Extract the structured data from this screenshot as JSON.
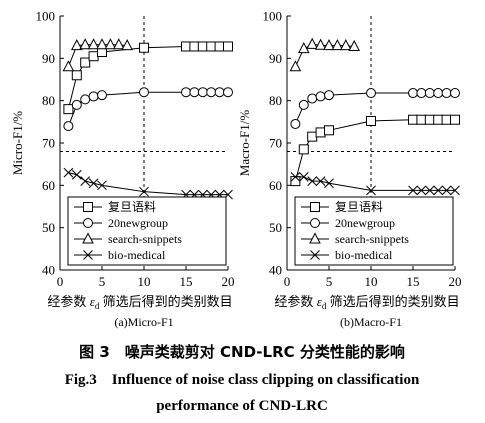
{
  "chart_data": [
    {
      "type": "line",
      "title": "(a)Micro-F1",
      "xlabel": "经参数 ε_d 筛选后得到的类别数目",
      "ylabel": "Micro-F1/%",
      "xlim": [
        0,
        20
      ],
      "ylim": [
        40,
        100
      ],
      "xticks": [
        0,
        5,
        10,
        15,
        20
      ],
      "yticks": [
        40,
        50,
        60,
        70,
        80,
        90,
        100
      ],
      "grid": false,
      "legend_position": "lower-left",
      "reference_lines": {
        "vertical_x": 10,
        "horizontal_y": 68
      },
      "series": [
        {
          "name": "复旦语料",
          "marker": "square",
          "x": [
            1,
            2,
            3,
            4,
            5,
            10,
            15,
            16,
            17,
            18,
            19,
            20
          ],
          "y": [
            78,
            86,
            89,
            90.5,
            91.5,
            92.5,
            92.8,
            92.8,
            92.8,
            92.8,
            92.8,
            92.8
          ]
        },
        {
          "name": "20newgroup",
          "marker": "circle",
          "x": [
            1,
            2,
            3,
            4,
            5,
            10,
            15,
            16,
            17,
            18,
            19,
            20
          ],
          "y": [
            74,
            79,
            80.3,
            81,
            81.3,
            82,
            82,
            82,
            82,
            82,
            82,
            82
          ]
        },
        {
          "name": "search-snippets",
          "marker": "triangle",
          "x": [
            1,
            2,
            3,
            4,
            5,
            6,
            7,
            8
          ],
          "y": [
            88,
            93,
            93.2,
            93.2,
            93.2,
            93.2,
            93.2,
            93
          ]
        },
        {
          "name": "bio-medical",
          "marker": "x",
          "x": [
            1,
            2,
            3,
            4,
            5,
            10,
            15,
            16,
            17,
            18,
            19,
            20
          ],
          "y": [
            63,
            62.5,
            61,
            60.5,
            60,
            58.5,
            57.8,
            57.8,
            57.8,
            57.8,
            57.8,
            57.8
          ]
        }
      ]
    },
    {
      "type": "line",
      "title": "(b)Macro-F1",
      "xlabel": "经参数 ε_d 筛选后得到的类别数目",
      "ylabel": "Macro-F1/%",
      "xlim": [
        0,
        20
      ],
      "ylim": [
        40,
        100
      ],
      "xticks": [
        0,
        5,
        10,
        15,
        20
      ],
      "yticks": [
        40,
        50,
        60,
        70,
        80,
        90,
        100
      ],
      "grid": false,
      "legend_position": "lower-left",
      "reference_lines": {
        "vertical_x": 10,
        "horizontal_y": 68
      },
      "series": [
        {
          "name": "复旦语料",
          "marker": "square",
          "x": [
            1,
            2,
            3,
            4,
            5,
            10,
            15,
            16,
            17,
            18,
            19,
            20
          ],
          "y": [
            61,
            68.5,
            71.5,
            72.5,
            73,
            75.2,
            75.5,
            75.5,
            75.5,
            75.5,
            75.5,
            75.5
          ]
        },
        {
          "name": "20newgroup",
          "marker": "circle",
          "x": [
            1,
            2,
            3,
            4,
            5,
            10,
            15,
            16,
            17,
            18,
            19,
            20
          ],
          "y": [
            74.5,
            79,
            80.5,
            81,
            81.3,
            81.8,
            81.8,
            81.8,
            81.8,
            81.8,
            81.8,
            81.8
          ]
        },
        {
          "name": "search-snippets",
          "marker": "triangle",
          "x": [
            1,
            2,
            3,
            4,
            5,
            6,
            7,
            8
          ],
          "y": [
            88,
            92.3,
            93.3,
            93.1,
            93,
            93,
            93,
            92.8
          ]
        },
        {
          "name": "bio-medical",
          "marker": "x",
          "x": [
            1,
            2,
            3,
            4,
            5,
            10,
            15,
            16,
            17,
            18,
            19,
            20
          ],
          "y": [
            62,
            62,
            61,
            61,
            60.5,
            58.8,
            58.8,
            58.8,
            58.8,
            58.8,
            58.8,
            58.8
          ]
        }
      ]
    }
  ],
  "figure": {
    "xlabel_prefix": "经参数 ",
    "xlabel_eps": "ε",
    "xlabel_sub": "d",
    "xlabel_suffix": " 筛选后得到的类别数目",
    "caption_cn": "图 3　噪声类裁剪对 CND-LRC 分类性能的影响",
    "caption_en_line1": "Fig.3　Influence of noise class clipping on classification",
    "caption_en_line2": "performance of CND-LRC"
  }
}
